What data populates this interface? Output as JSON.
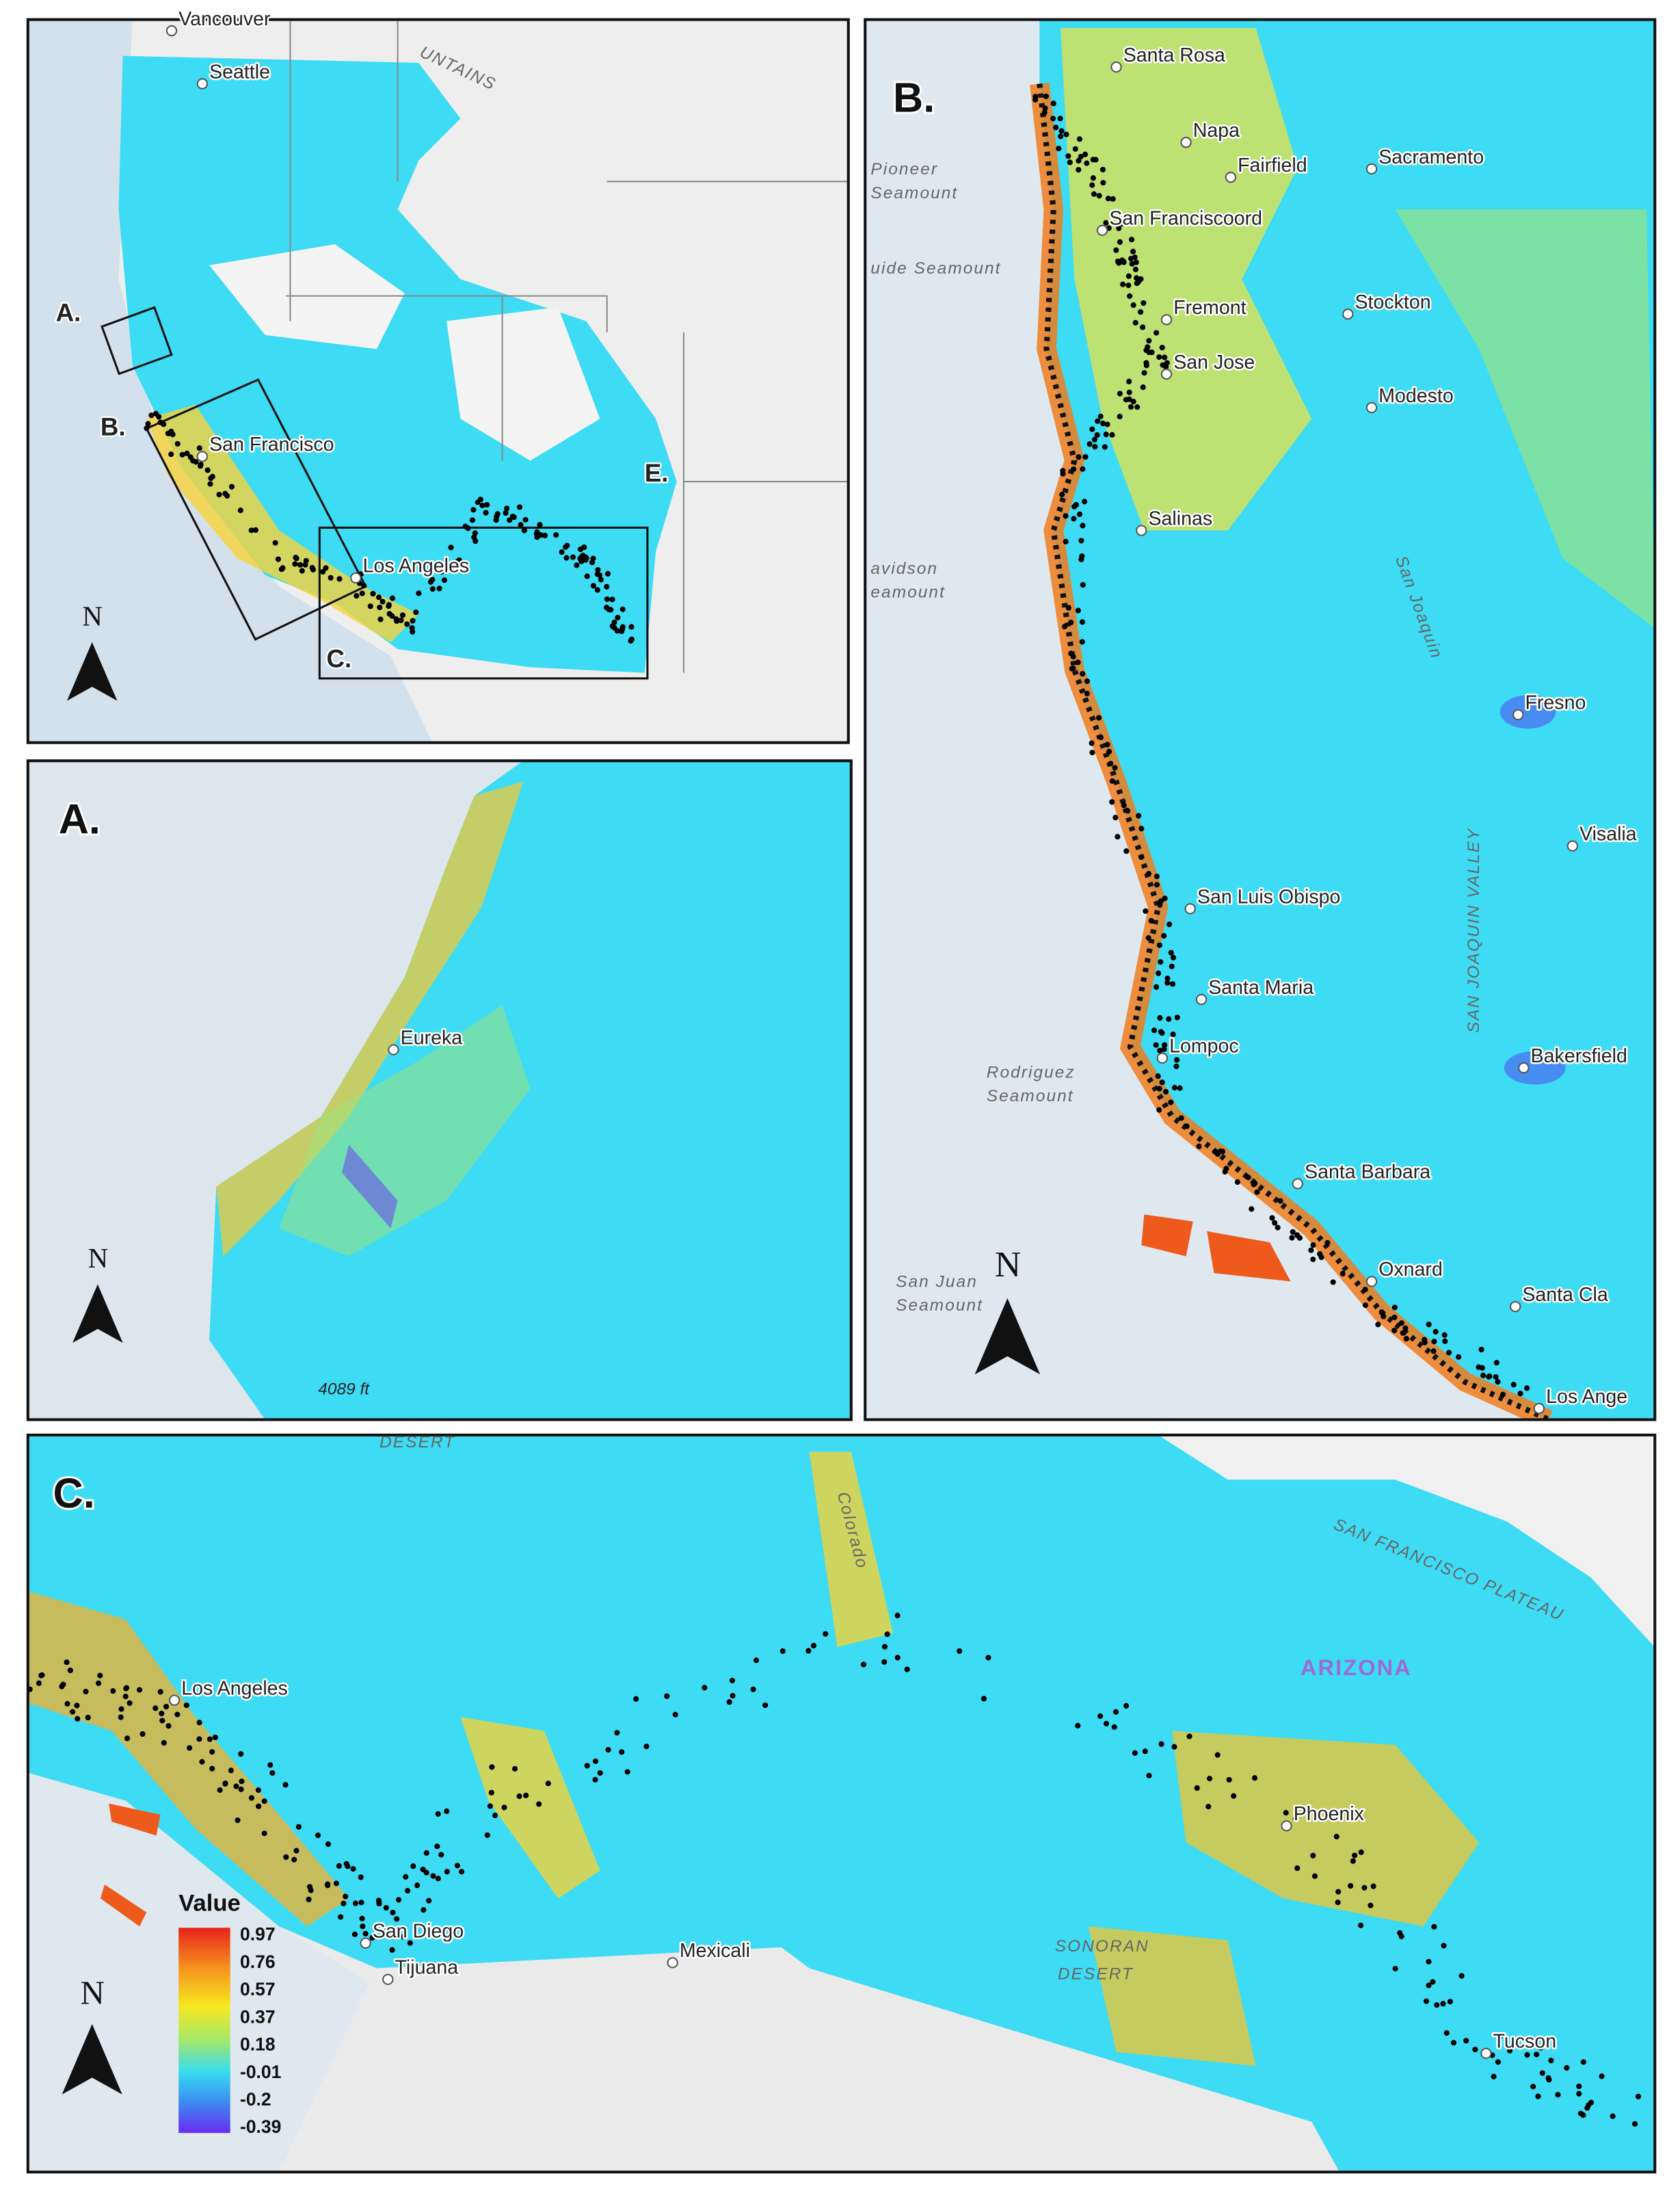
{
  "overview": {
    "panel_labels": [
      "A.",
      "B.",
      "C.",
      "E."
    ],
    "cities": [
      "Vancouver",
      "Seattle",
      "San Francisco",
      "Los Angeles"
    ],
    "feature": "UNTAINS"
  },
  "panel_a": {
    "label": "A.",
    "cities": [
      "Eureka"
    ],
    "scale": "4089 ft"
  },
  "panel_b": {
    "label": "B.",
    "cities": [
      "Santa Rosa",
      "Napa",
      "Fairfield",
      "Sacramento",
      "San Franciscoord",
      "Fremont",
      "Stockton",
      "San Jose",
      "Modesto",
      "Salinas",
      "Fresno",
      "Visalia",
      "San Luis Obispo",
      "Santa Maria",
      "Lompoc",
      "Bakersfield",
      "Santa Barbara",
      "Oxnard",
      "Santa Cla",
      "Los Ange"
    ],
    "features": [
      "Pioneer",
      "Seamount",
      "uide Seamount",
      "avidson",
      "eamount",
      "San Joaquin",
      "SAN JOAQUIN VALLEY",
      "Rodriguez",
      "Seamount",
      "San Juan",
      "Seamount"
    ]
  },
  "panel_c": {
    "label": "C.",
    "cities": [
      "Los Angeles",
      "San Diego",
      "Tijuana",
      "Mexicali",
      "Phoenix",
      "Tucson"
    ],
    "features": [
      "DESERT",
      "Colorado",
      "SAN FRANCISCO PLATEAU",
      "ARIZONA",
      "SONORAN",
      "DESERT"
    ]
  },
  "north": "N",
  "legend": {
    "title": "Value",
    "values": [
      0.97,
      0.76,
      0.57,
      0.37,
      0.18,
      -0.01,
      -0.2,
      -0.39
    ]
  }
}
